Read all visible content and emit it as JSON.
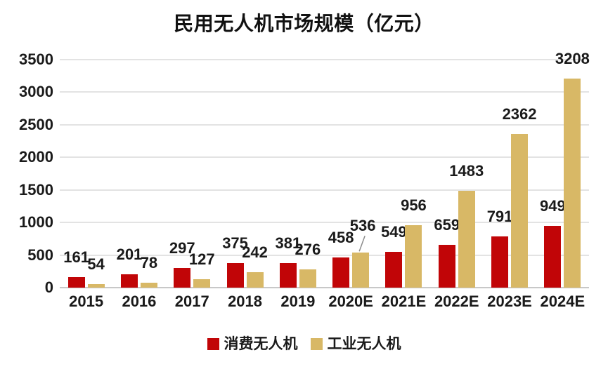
{
  "chart_data": {
    "type": "bar",
    "title": "民用无人机市场规模（亿元）",
    "categories": [
      "2015",
      "2016",
      "2017",
      "2018",
      "2019",
      "2020E",
      "2021E",
      "2022E",
      "2023E",
      "2024E"
    ],
    "series": [
      {
        "name": "消费无人机",
        "color": "#c10507",
        "values": [
          161,
          201,
          297,
          375,
          381,
          458,
          549,
          659,
          791,
          949
        ]
      },
      {
        "name": "工业无人机",
        "color": "#d8b866",
        "values": [
          54,
          78,
          127,
          242,
          276,
          536,
          956,
          1483,
          2362,
          3208
        ]
      }
    ],
    "ylim": [
      0,
      3500
    ],
    "yticks": [
      0,
      500,
      1000,
      1500,
      2000,
      2500,
      3000,
      3500
    ],
    "grid": "horizontal",
    "legend_position": "bottom",
    "data_labels": true,
    "callouts": [
      {
        "series": 1,
        "index": 5,
        "dx": 3,
        "dy": -10,
        "leader": true
      }
    ]
  },
  "colors": {
    "gridline": "#e3e3e3",
    "axis_line": "#c8c8c8",
    "text": "#1a1a1a",
    "leader_line": "#8c8c8c"
  }
}
